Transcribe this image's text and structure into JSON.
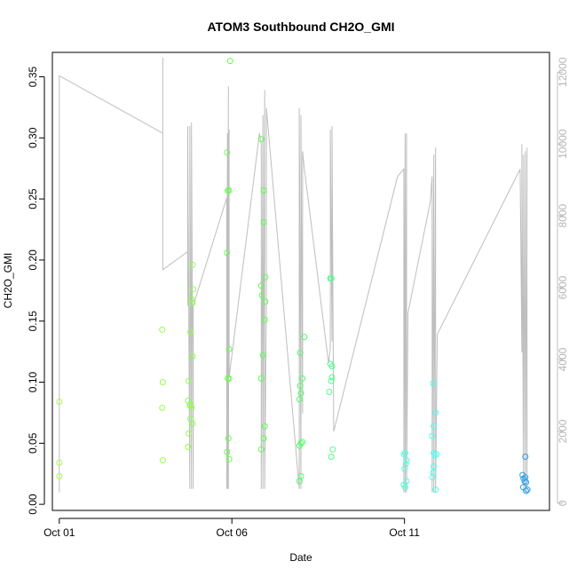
{
  "chart_data": {
    "type": "scatter",
    "title": "ATOM3 Southbound CH2O_GMI",
    "xlabel": "Date",
    "ylabel": "CH2O_GMI",
    "x_ticks": [
      "Oct 01",
      "Oct 06",
      "Oct 11"
    ],
    "xlim_days": [
      30.8,
      45.2
    ],
    "ylim": [
      -0.005,
      0.37
    ],
    "y_ticks": [
      "0.00",
      "0.05",
      "0.10",
      "0.15",
      "0.20",
      "0.25",
      "0.30",
      "0.35"
    ],
    "y2_ticks": [
      "0",
      "2000",
      "4000",
      "6000",
      "8000",
      "10000",
      "12000"
    ],
    "y2lim": [
      -200,
      12550
    ],
    "y2_color": "#bebebe",
    "grid": false,
    "points": [
      {
        "x": 31.0,
        "y": 0.084,
        "color": "#a6ff4d"
      },
      {
        "x": 31.0,
        "y": 0.034,
        "color": "#a6ff4d"
      },
      {
        "x": 31.0,
        "y": 0.023,
        "color": "#a6ff4d"
      },
      {
        "x": 33.98,
        "y": 0.143,
        "color": "#99ff4d"
      },
      {
        "x": 34.0,
        "y": 0.1,
        "color": "#99ff4d"
      },
      {
        "x": 33.98,
        "y": 0.079,
        "color": "#99ff4d"
      },
      {
        "x": 34.0,
        "y": 0.036,
        "color": "#99ff4d"
      },
      {
        "x": 34.75,
        "y": 0.101,
        "color": "#8cff4d"
      },
      {
        "x": 34.73,
        "y": 0.085,
        "color": "#8cff4d"
      },
      {
        "x": 34.78,
        "y": 0.081,
        "color": "#8cff4d"
      },
      {
        "x": 34.8,
        "y": 0.082,
        "color": "#8cff4d"
      },
      {
        "x": 34.83,
        "y": 0.079,
        "color": "#8cff4d"
      },
      {
        "x": 34.8,
        "y": 0.07,
        "color": "#8cff4d"
      },
      {
        "x": 34.86,
        "y": 0.066,
        "color": "#8cff4d"
      },
      {
        "x": 34.75,
        "y": 0.058,
        "color": "#8cff4d"
      },
      {
        "x": 34.73,
        "y": 0.047,
        "color": "#8cff4d"
      },
      {
        "x": 34.8,
        "y": 0.141,
        "color": "#8cff4d"
      },
      {
        "x": 34.83,
        "y": 0.168,
        "color": "#8cff4d"
      },
      {
        "x": 34.86,
        "y": 0.165,
        "color": "#8cff4d"
      },
      {
        "x": 34.88,
        "y": 0.176,
        "color": "#8cff4d"
      },
      {
        "x": 34.86,
        "y": 0.196,
        "color": "#8cff4d"
      },
      {
        "x": 34.86,
        "y": 0.121,
        "color": "#8cff4d"
      },
      {
        "x": 35.86,
        "y": 0.288,
        "color": "#66ff4d"
      },
      {
        "x": 35.88,
        "y": 0.257,
        "color": "#66ff4d"
      },
      {
        "x": 35.92,
        "y": 0.257,
        "color": "#66ff4d"
      },
      {
        "x": 35.86,
        "y": 0.206,
        "color": "#66ff4d"
      },
      {
        "x": 35.92,
        "y": 0.127,
        "color": "#66ff4d"
      },
      {
        "x": 35.88,
        "y": 0.103,
        "color": "#66ff4d"
      },
      {
        "x": 35.92,
        "y": 0.103,
        "color": "#66ff4d"
      },
      {
        "x": 35.9,
        "y": 0.054,
        "color": "#66ff4d"
      },
      {
        "x": 35.86,
        "y": 0.043,
        "color": "#66ff4d"
      },
      {
        "x": 35.92,
        "y": 0.037,
        "color": "#66ff4d"
      },
      {
        "x": 35.95,
        "y": 0.363,
        "color": "#66ff4d"
      },
      {
        "x": 36.85,
        "y": 0.299,
        "color": "#5cff4d"
      },
      {
        "x": 36.92,
        "y": 0.257,
        "color": "#5cff4d"
      },
      {
        "x": 36.92,
        "y": 0.231,
        "color": "#5cff4d"
      },
      {
        "x": 36.97,
        "y": 0.186,
        "color": "#5cff4d"
      },
      {
        "x": 36.85,
        "y": 0.179,
        "color": "#5cff4d"
      },
      {
        "x": 36.87,
        "y": 0.171,
        "color": "#5cff4d"
      },
      {
        "x": 36.97,
        "y": 0.166,
        "color": "#5cff4d"
      },
      {
        "x": 36.95,
        "y": 0.151,
        "color": "#5cff4d"
      },
      {
        "x": 36.9,
        "y": 0.122,
        "color": "#5cff4d"
      },
      {
        "x": 36.85,
        "y": 0.103,
        "color": "#5cff4d"
      },
      {
        "x": 36.95,
        "y": 0.064,
        "color": "#5cff4d"
      },
      {
        "x": 36.92,
        "y": 0.054,
        "color": "#5cff4d"
      },
      {
        "x": 36.85,
        "y": 0.045,
        "color": "#5cff4d"
      },
      {
        "x": 37.98,
        "y": 0.124,
        "color": "#4dff66"
      },
      {
        "x": 38.04,
        "y": 0.103,
        "color": "#4dff66"
      },
      {
        "x": 38.1,
        "y": 0.137,
        "color": "#4dff66"
      },
      {
        "x": 37.98,
        "y": 0.097,
        "color": "#4dff66"
      },
      {
        "x": 38.0,
        "y": 0.091,
        "color": "#4dff66"
      },
      {
        "x": 37.96,
        "y": 0.086,
        "color": "#4dff66"
      },
      {
        "x": 38.0,
        "y": 0.05,
        "color": "#4dff66"
      },
      {
        "x": 38.04,
        "y": 0.051,
        "color": "#4dff66"
      },
      {
        "x": 37.96,
        "y": 0.048,
        "color": "#4dff66"
      },
      {
        "x": 38.0,
        "y": 0.023,
        "color": "#4dff66"
      },
      {
        "x": 37.96,
        "y": 0.019,
        "color": "#4dff66"
      },
      {
        "x": 38.85,
        "y": 0.185,
        "color": "#4dff8c"
      },
      {
        "x": 38.88,
        "y": 0.185,
        "color": "#4dff8c"
      },
      {
        "x": 38.85,
        "y": 0.115,
        "color": "#4dff8c"
      },
      {
        "x": 38.9,
        "y": 0.113,
        "color": "#4dff8c"
      },
      {
        "x": 38.9,
        "y": 0.104,
        "color": "#4dff8c"
      },
      {
        "x": 38.88,
        "y": 0.101,
        "color": "#4dff8c"
      },
      {
        "x": 38.82,
        "y": 0.092,
        "color": "#4dff8c"
      },
      {
        "x": 38.92,
        "y": 0.045,
        "color": "#4dff8c"
      },
      {
        "x": 38.88,
        "y": 0.039,
        "color": "#4dff8c"
      },
      {
        "x": 40.98,
        "y": 0.041,
        "color": "#4dffdd"
      },
      {
        "x": 41.02,
        "y": 0.042,
        "color": "#4dffdd"
      },
      {
        "x": 41.06,
        "y": 0.036,
        "color": "#4dffdd"
      },
      {
        "x": 41.04,
        "y": 0.033,
        "color": "#4dffdd"
      },
      {
        "x": 41.0,
        "y": 0.029,
        "color": "#4dffdd"
      },
      {
        "x": 41.06,
        "y": 0.019,
        "color": "#4dffdd"
      },
      {
        "x": 40.98,
        "y": 0.016,
        "color": "#4dffdd"
      },
      {
        "x": 41.02,
        "y": 0.014,
        "color": "#4dffdd"
      },
      {
        "x": 41.83,
        "y": 0.099,
        "color": "#4dfff0"
      },
      {
        "x": 41.9,
        "y": 0.075,
        "color": "#4dfff0"
      },
      {
        "x": 41.85,
        "y": 0.064,
        "color": "#4dfff0"
      },
      {
        "x": 41.8,
        "y": 0.056,
        "color": "#4dfff0"
      },
      {
        "x": 41.85,
        "y": 0.042,
        "color": "#4dfff0"
      },
      {
        "x": 41.88,
        "y": 0.04,
        "color": "#4dfff0"
      },
      {
        "x": 41.93,
        "y": 0.041,
        "color": "#4dfff0"
      },
      {
        "x": 41.85,
        "y": 0.031,
        "color": "#4dfff0"
      },
      {
        "x": 41.83,
        "y": 0.026,
        "color": "#4dfff0"
      },
      {
        "x": 41.8,
        "y": 0.022,
        "color": "#4dfff0"
      },
      {
        "x": 41.9,
        "y": 0.012,
        "color": "#4dfff0"
      },
      {
        "x": 44.5,
        "y": 0.039,
        "color": "#2ea0e6"
      },
      {
        "x": 44.42,
        "y": 0.024,
        "color": "#2ea0e6"
      },
      {
        "x": 44.45,
        "y": 0.021,
        "color": "#2ea0e6"
      },
      {
        "x": 44.5,
        "y": 0.022,
        "color": "#2ea0e6"
      },
      {
        "x": 44.48,
        "y": 0.019,
        "color": "#2ea0e6"
      },
      {
        "x": 44.52,
        "y": 0.018,
        "color": "#2ea0e6"
      },
      {
        "x": 44.44,
        "y": 0.014,
        "color": "#2ea0e6"
      },
      {
        "x": 44.56,
        "y": 0.012,
        "color": "#2ea0e6"
      },
      {
        "x": 44.52,
        "y": 0.011,
        "color": "#2ea0e6"
      }
    ],
    "altitude_line": {
      "color": "#bebebe",
      "x": [
        31.0,
        31.0,
        31.0,
        34.0,
        34.0,
        34.0,
        34.0,
        34.0,
        34.72,
        34.72,
        34.72,
        34.78,
        34.78,
        34.83,
        34.83,
        34.88,
        34.88,
        35.85,
        35.85,
        35.87,
        35.87,
        35.9,
        35.9,
        35.92,
        35.92,
        36.8,
        36.85,
        36.85,
        36.9,
        36.9,
        36.95,
        36.95,
        37.0,
        37.0,
        37.95,
        37.95,
        38.0,
        38.0,
        38.05,
        38.05,
        38.1,
        38.8,
        38.85,
        38.85,
        38.9,
        38.9,
        38.95,
        40.8,
        40.98,
        40.98,
        41.02,
        41.02,
        41.06,
        41.06,
        41.1,
        41.75,
        41.8,
        41.8,
        41.85,
        41.85,
        41.9,
        41.9,
        41.95,
        44.35,
        44.4,
        44.4,
        44.45,
        44.45,
        44.5,
        44.5,
        44.55,
        44.55
      ],
      "y": [
        300,
        11900,
        11900,
        10300,
        8500,
        12400,
        8500,
        6500,
        7000,
        5500,
        10500,
        400,
        10500,
        400,
        10600,
        400,
        5500,
        8500,
        400,
        10300,
        400,
        11600,
        400,
        10400,
        3500,
        10300,
        10000,
        400,
        10800,
        400,
        11500,
        400,
        5500,
        11000,
        400,
        11000,
        400,
        10800,
        2500,
        9800,
        9300,
        3900,
        4300,
        10400,
        4500,
        10500,
        2000,
        9100,
        9300,
        300,
        10300,
        300,
        10300,
        300,
        5300,
        8400,
        9100,
        300,
        9700,
        300,
        9900,
        300,
        4700,
        9300,
        4200,
        10000,
        300,
        9700,
        300,
        9800,
        300,
        9900
      ]
    }
  }
}
